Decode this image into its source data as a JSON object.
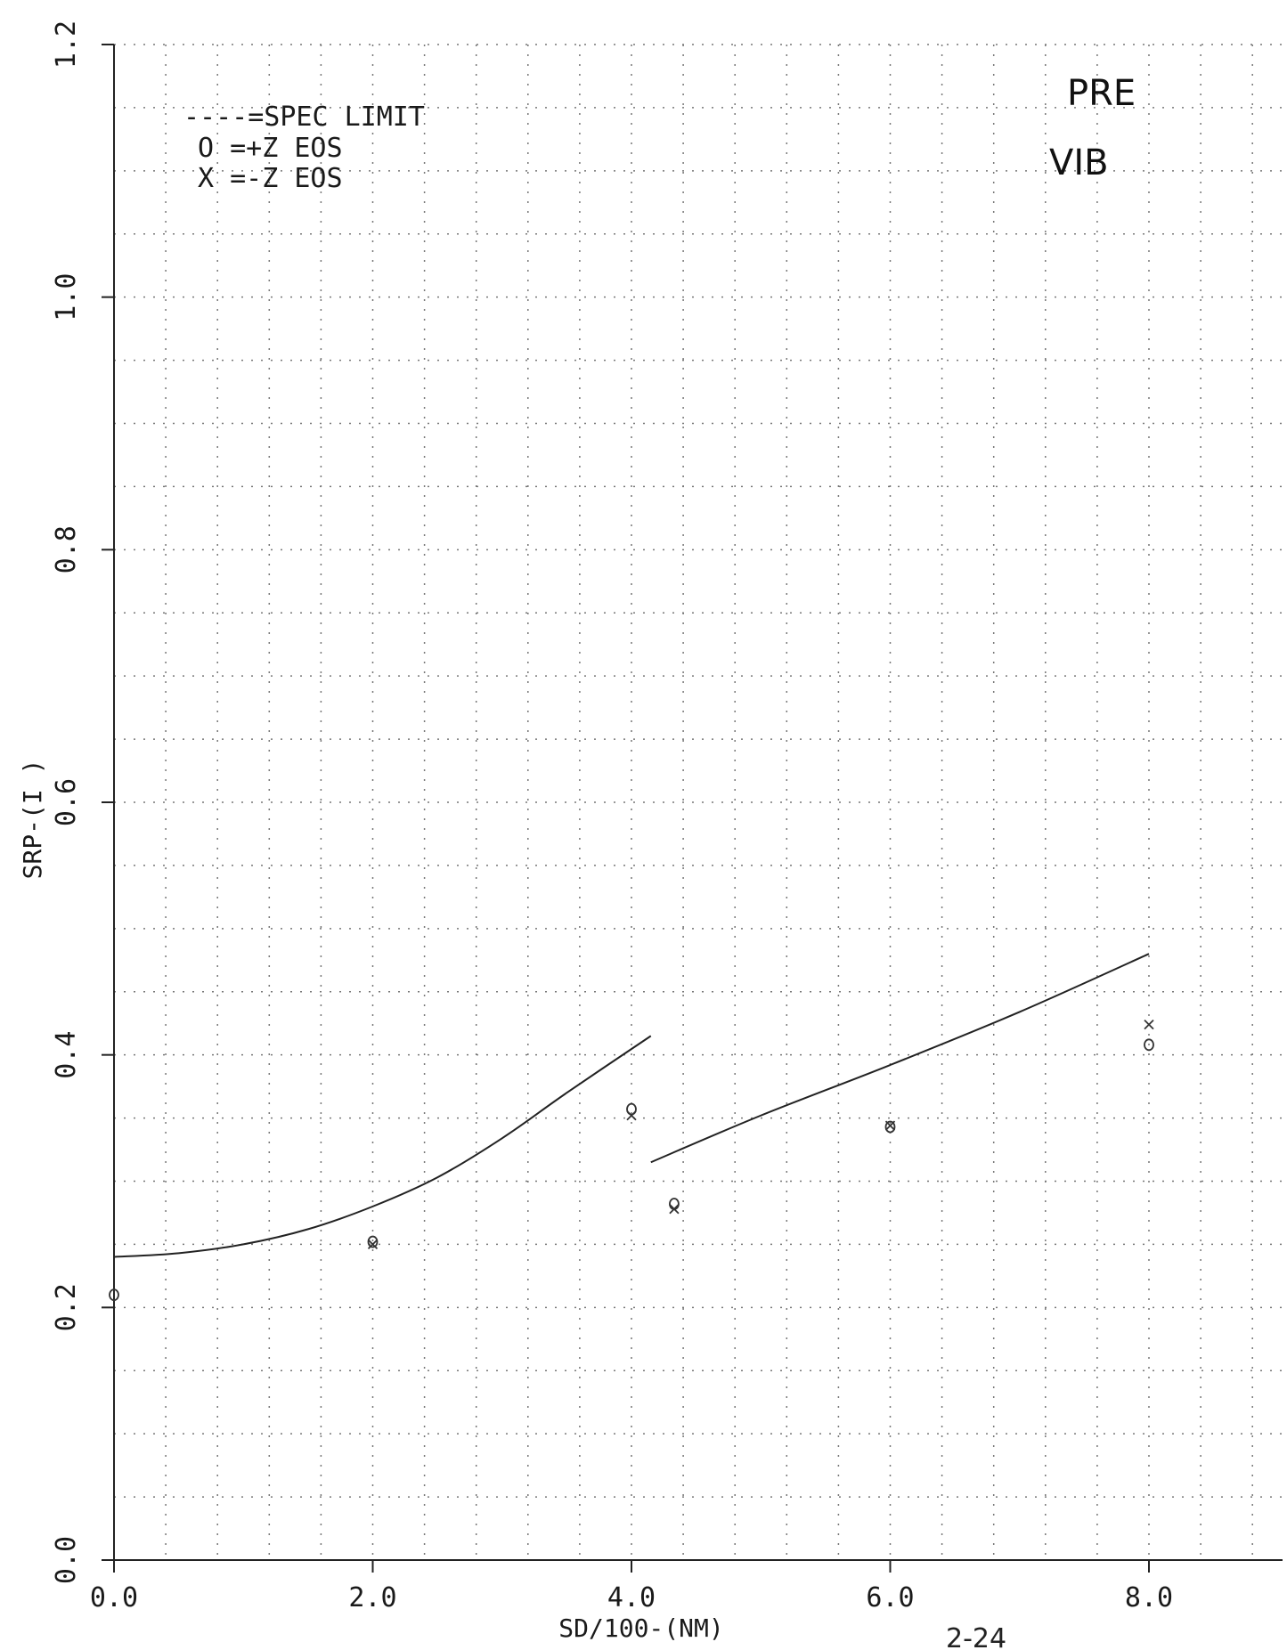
{
  "chart_data": {
    "type": "scatter",
    "xlabel": "SD/100-(NM)",
    "ylabel": "SRP-(I  )",
    "xlim": [
      0,
      9
    ],
    "ylim": [
      0,
      1.2
    ],
    "x_ticks": [
      "0.0",
      "2.0",
      "4.0",
      "6.0",
      "8.0"
    ],
    "y_ticks": [
      "0.0",
      "0.2",
      "0.4",
      "0.6",
      "0.8",
      "1.0",
      "1.2"
    ],
    "grid": true,
    "legend": {
      "placement": "top-left",
      "entries": [
        "----=SPEC LIMIT",
        "O  =+Z EOS",
        "X  =-Z EOS"
      ]
    },
    "annotations": [
      "PRE",
      "VIB"
    ],
    "note": "2-24",
    "series": [
      {
        "name": "SPEC LIMIT",
        "kind": "line",
        "segments": [
          {
            "x": [
              0.0,
              0.5,
              1.0,
              1.5,
              2.0,
              2.5,
              3.0,
              3.5,
              4.15
            ],
            "y": [
              0.24,
              0.243,
              0.25,
              0.262,
              0.28,
              0.303,
              0.334,
              0.37,
              0.415
            ]
          },
          {
            "x": [
              4.15,
              5.0,
              6.0,
              7.0,
              8.0
            ],
            "y": [
              0.315,
              0.352,
              0.392,
              0.434,
              0.48
            ]
          }
        ]
      },
      {
        "name": "+Z EOS",
        "kind": "points",
        "marker": "O",
        "x": [
          0.0,
          2.0,
          4.0,
          4.33,
          6.0,
          8.0
        ],
        "y": [
          0.21,
          0.252,
          0.357,
          0.282,
          0.343,
          0.408
        ]
      },
      {
        "name": "-Z EOS",
        "kind": "points",
        "marker": "X",
        "x": [
          2.0,
          4.0,
          4.33,
          6.0,
          8.0
        ],
        "y": [
          0.25,
          0.352,
          0.278,
          0.344,
          0.424
        ]
      }
    ]
  }
}
